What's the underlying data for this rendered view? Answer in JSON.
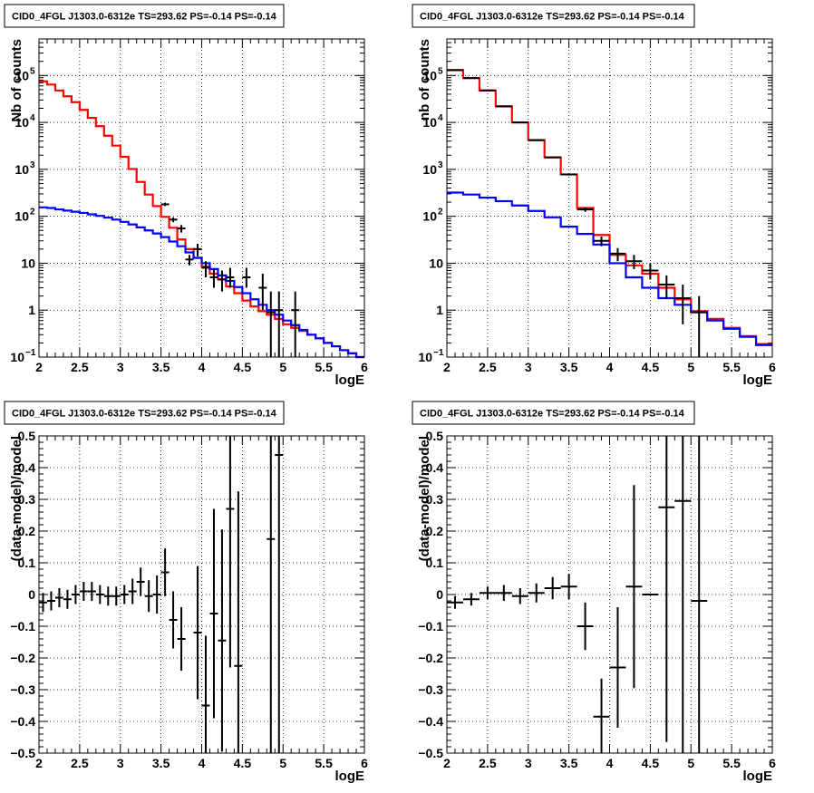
{
  "chart_data": [
    {
      "type": "line",
      "title": "CID0_4FGL J1303.0-6312e TS=293.62 PS=-0.14 PS=-0.14",
      "xlabel": "logE",
      "ylabel": "Nb of counts",
      "xlim": [
        2,
        6
      ],
      "ylim": [
        0.1,
        600000
      ],
      "yscale": "log",
      "grid": true,
      "x_ticks": [
        "2",
        "2.5",
        "3",
        "3.5",
        "4",
        "4.5",
        "5",
        "5.5",
        "6"
      ],
      "y_ticks": [
        {
          "base": "10",
          "exp": "−1"
        },
        {
          "base": "1",
          "exp": ""
        },
        {
          "base": "10",
          "exp": ""
        },
        {
          "base": "10",
          "exp": "2"
        },
        {
          "base": "10",
          "exp": "3"
        },
        {
          "base": "10",
          "exp": "4"
        },
        {
          "base": "10",
          "exp": "5"
        }
      ],
      "series": [
        {
          "color": "#ff0000",
          "bin_width": 0.1,
          "x": [
            2.0,
            2.1,
            2.2,
            2.3,
            2.4,
            2.5,
            2.6,
            2.7,
            2.8,
            2.9,
            3.0,
            3.1,
            3.2,
            3.3,
            3.4,
            3.5,
            3.6,
            3.7,
            3.8,
            3.9,
            4.0,
            4.1,
            4.2,
            4.3,
            4.4,
            4.5,
            4.6,
            4.7,
            4.8,
            4.9,
            5.0,
            5.1,
            5.2,
            5.3,
            5.4,
            5.5,
            5.6,
            5.7,
            5.8,
            5.9
          ],
          "values": [
            75000,
            64000,
            48000,
            36000,
            27000,
            18500,
            12500,
            8300,
            5200,
            3200,
            1850,
            1020,
            540,
            290,
            165,
            97,
            57,
            32,
            20,
            13,
            8.5,
            6,
            4.5,
            3.2,
            2.3,
            1.6,
            1.2,
            0.95,
            0.8,
            0.65,
            0.5,
            0.42,
            0.36,
            0.3,
            0.25,
            0.2,
            0.17,
            0.14,
            0.12,
            0.1
          ]
        },
        {
          "color": "#0000ff",
          "bin_width": 0.1,
          "x": [
            2.0,
            2.1,
            2.2,
            2.3,
            2.4,
            2.5,
            2.6,
            2.7,
            2.8,
            2.9,
            3.0,
            3.1,
            3.2,
            3.3,
            3.4,
            3.5,
            3.6,
            3.7,
            3.8,
            3.9,
            4.0,
            4.1,
            4.2,
            4.3,
            4.4,
            4.5,
            4.6,
            4.7,
            4.8,
            4.9,
            5.0,
            5.1,
            5.2,
            5.3,
            5.4,
            5.5,
            5.6,
            5.7,
            5.8,
            5.9
          ],
          "values": [
            155,
            150,
            140,
            132,
            125,
            118,
            110,
            102,
            94,
            85,
            76,
            67,
            58,
            50,
            43,
            36,
            29,
            23,
            17,
            13,
            10,
            7.5,
            5.5,
            4.2,
            3.1,
            2.3,
            1.7,
            1.3,
            1.0,
            0.8,
            0.6,
            0.48,
            0.38,
            0.3,
            0.25,
            0.2,
            0.17,
            0.14,
            0.12,
            0.1
          ]
        }
      ],
      "data_points": {
        "x": [
          3.55,
          3.65,
          3.75,
          3.85,
          3.95,
          4.05,
          4.15,
          4.25,
          4.35,
          4.55,
          4.75,
          4.85,
          4.95,
          5.15
        ],
        "y": [
          180,
          85,
          55,
          12,
          20,
          8,
          5,
          4.5,
          5,
          5,
          3,
          0.9,
          1,
          1
        ],
        "err_low": [
          165,
          75,
          45,
          9,
          14,
          5,
          3,
          2.5,
          3,
          3,
          1,
          0.1,
          0.1,
          0.1
        ],
        "err_high": [
          195,
          95,
          65,
          15,
          26,
          11,
          7.5,
          7,
          8,
          8,
          6,
          2.5,
          2.5,
          2.5
        ]
      }
    },
    {
      "type": "line",
      "title": "CID0_4FGL J1303.0-6312e TS=293.62 PS=-0.14 PS=-0.14",
      "xlabel": "logE",
      "ylabel": "nb of counts",
      "xlim": [
        2,
        6
      ],
      "ylim": [
        0.1,
        600000
      ],
      "yscale": "log",
      "grid": true,
      "x_ticks": [
        "2",
        "2.5",
        "3",
        "3.5",
        "4",
        "4.5",
        "5",
        "5.5",
        "6"
      ],
      "y_ticks": [
        {
          "base": "10",
          "exp": "−1"
        },
        {
          "base": "1",
          "exp": ""
        },
        {
          "base": "10",
          "exp": ""
        },
        {
          "base": "10",
          "exp": "2"
        },
        {
          "base": "10",
          "exp": "3"
        },
        {
          "base": "10",
          "exp": "4"
        },
        {
          "base": "10",
          "exp": "5"
        }
      ],
      "series": [
        {
          "color": "#ff0000",
          "bin_width": 0.2,
          "x": [
            2.0,
            2.2,
            2.4,
            2.6,
            2.8,
            3.0,
            3.2,
            3.4,
            3.6,
            3.8,
            4.0,
            4.2,
            4.4,
            4.6,
            4.8,
            5.0,
            5.2,
            5.4,
            5.6,
            5.8
          ],
          "values": [
            130000,
            88000,
            48000,
            22000,
            10000,
            4200,
            1800,
            780,
            150,
            40,
            15,
            9,
            6,
            3,
            1.7,
            0.95,
            0.65,
            0.42,
            0.28,
            0.19
          ]
        },
        {
          "color": "#0000ff",
          "bin_width": 0.2,
          "x": [
            2.0,
            2.2,
            2.4,
            2.6,
            2.8,
            3.0,
            3.2,
            3.4,
            3.6,
            3.8,
            4.0,
            4.2,
            4.4,
            4.6,
            4.8,
            5.0,
            5.2,
            5.4,
            5.6,
            5.8
          ],
          "values": [
            320,
            290,
            250,
            210,
            170,
            130,
            95,
            60,
            42,
            25,
            10,
            5,
            3,
            1.8,
            1.3,
            0.9,
            0.6,
            0.4,
            0.27,
            0.18
          ]
        }
      ],
      "data_points": {
        "x": [
          2.1,
          2.3,
          2.5,
          2.7,
          2.9,
          3.1,
          3.3,
          3.5,
          3.7,
          3.9,
          4.1,
          4.3,
          4.5,
          4.7,
          4.9,
          5.1
        ],
        "y": [
          130000,
          88000,
          48000,
          22000,
          10000,
          4200,
          1800,
          780,
          140,
          30,
          16,
          11,
          7,
          3.5,
          1.8,
          0.9
        ],
        "err_low": [
          129000,
          87000,
          47500,
          21700,
          9800,
          4100,
          1750,
          750,
          125,
          23,
          11,
          7.5,
          4.5,
          1.8,
          0.5,
          0.1
        ],
        "err_high": [
          131000,
          89000,
          48500,
          22300,
          10200,
          4300,
          1850,
          810,
          155,
          37,
          21,
          15,
          10,
          5.5,
          3.5,
          2
        ]
      }
    },
    {
      "type": "scatter",
      "title": "CID0_4FGL J1303.0-6312e TS=293.62 PS=-0.14 PS=-0.14",
      "xlabel": "logE",
      "ylabel": "(data-model)/model",
      "xlim": [
        2,
        6
      ],
      "ylim": [
        -0.5,
        0.5
      ],
      "grid": true,
      "x_ticks": [
        "2",
        "2.5",
        "3",
        "3.5",
        "4",
        "4.5",
        "5",
        "5.5",
        "6"
      ],
      "y_ticks": [
        "−0.5",
        "−0.4",
        "−0.3",
        "−0.2",
        "−0.1",
        "0",
        "0.1",
        "0.2",
        "0.3",
        "0.4",
        "0.5"
      ],
      "bin_width": 0.1,
      "points": {
        "x": [
          2.05,
          2.15,
          2.25,
          2.35,
          2.45,
          2.55,
          2.65,
          2.75,
          2.85,
          2.95,
          3.05,
          3.15,
          3.25,
          3.35,
          3.45,
          3.55,
          3.65,
          3.75,
          3.95,
          4.05,
          4.15,
          4.25,
          4.35,
          4.45,
          4.85,
          4.95
        ],
        "y": [
          -0.025,
          -0.02,
          -0.01,
          -0.015,
          0.0,
          0.01,
          0.01,
          0.0,
          -0.005,
          -0.005,
          0.0,
          0.01,
          0.04,
          -0.005,
          0.0,
          0.07,
          -0.08,
          -0.14,
          -0.12,
          -0.35,
          -0.06,
          -0.145,
          0.27,
          -0.225,
          0.175,
          0.44
        ],
        "err": [
          0.03,
          0.03,
          0.03,
          0.03,
          0.03,
          0.03,
          0.03,
          0.03,
          0.03,
          0.03,
          0.03,
          0.04,
          0.045,
          0.05,
          0.06,
          0.075,
          0.09,
          0.1,
          0.21,
          0.22,
          0.33,
          0.35,
          0.5,
          0.55,
          1.0,
          1.0
        ]
      }
    },
    {
      "type": "scatter",
      "title": "CID0_4FGL J1303.0-6312e TS=293.62 PS=-0.14 PS=-0.14",
      "xlabel": "logE",
      "ylabel": "(data-model)/model",
      "xlim": [
        2,
        6
      ],
      "ylim": [
        -0.5,
        0.5
      ],
      "grid": true,
      "x_ticks": [
        "2",
        "2.5",
        "3",
        "3.5",
        "4",
        "4.5",
        "5",
        "5.5",
        "6"
      ],
      "y_ticks": [
        "−0.5",
        "−0.4",
        "−0.3",
        "−0.2",
        "−0.1",
        "0",
        "0.1",
        "0.2",
        "0.3",
        "0.4",
        "0.5"
      ],
      "bin_width": 0.2,
      "points": {
        "x": [
          2.1,
          2.3,
          2.5,
          2.7,
          2.9,
          3.1,
          3.3,
          3.5,
          3.7,
          3.9,
          4.1,
          4.3,
          4.5,
          4.7,
          4.9,
          5.1
        ],
        "y": [
          -0.025,
          -0.015,
          0.005,
          0.005,
          -0.005,
          0.005,
          0.02,
          0.025,
          -0.1,
          -0.385,
          -0.23,
          0.025,
          0.0,
          0.275,
          0.295,
          -0.02
        ],
        "err": [
          0.02,
          0.02,
          0.02,
          0.025,
          0.025,
          0.03,
          0.035,
          0.04,
          0.075,
          0.12,
          0.19,
          0.32,
          0.0,
          0.74,
          1.0,
          1.0
        ]
      }
    }
  ]
}
